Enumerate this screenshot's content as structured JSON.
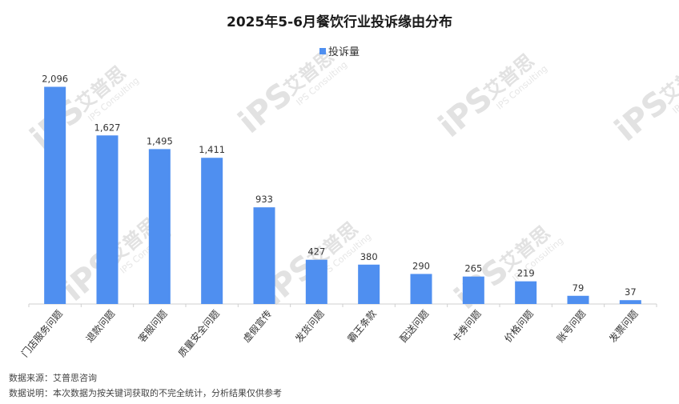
{
  "chart_data": {
    "type": "bar",
    "title": "2025年5-6月餐饮行业投诉缘由分布",
    "categories": [
      "门店服务问题",
      "退款问题",
      "客服问题",
      "质量安全问题",
      "虚假宣传",
      "发货问题",
      "霸王条款",
      "配送问题",
      "卡券问题",
      "价格问题",
      "账号问题",
      "发票问题"
    ],
    "series": [
      {
        "name": "投诉量",
        "values": [
          2096,
          1627,
          1495,
          1411,
          933,
          427,
          380,
          290,
          265,
          219,
          79,
          37
        ],
        "labels": [
          "2,096",
          "1,627",
          "1,495",
          "1,411",
          "933",
          "427",
          "380",
          "290",
          "265",
          "219",
          "79",
          "37"
        ]
      }
    ],
    "ylim": [
      0,
      2100
    ],
    "xlabel": "",
    "ylabel": "",
    "legend": "top-center",
    "grid": false,
    "colors": {
      "bar": "#4f8ff0"
    }
  },
  "notes": {
    "source": "数据来源：艾普思咨询",
    "explanation": "数据说明：本次数据为按关键词获取的不完全统计，分析结果仅供参考"
  },
  "watermark": {
    "brand": "艾普思",
    "logo": "iPS",
    "sub": "IPS Consulting"
  }
}
